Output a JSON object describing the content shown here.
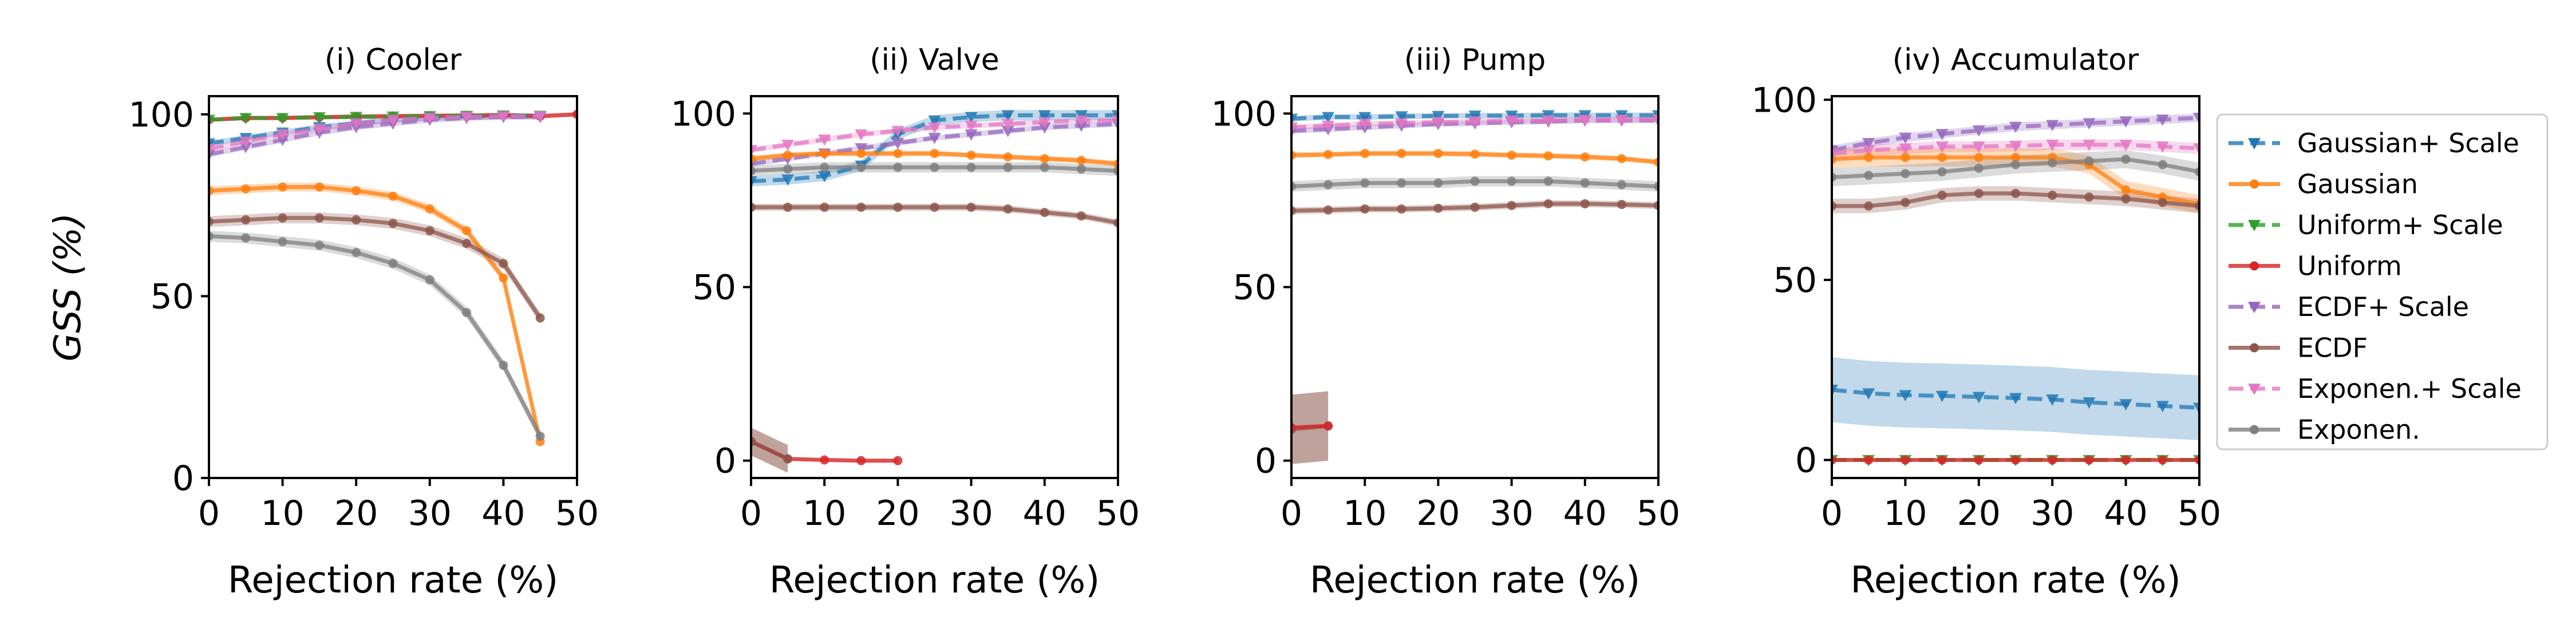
{
  "colors": {
    "Gaussian+ Scale": "#1f77b4",
    "Gaussian": "#ff7f0e",
    "Uniform+ Scale": "#2ca02c",
    "Uniform": "#d62728",
    "ECDF+ Scale": "#9467bd",
    "ECDF": "#8c564b",
    "Exponen.+ Scale": "#e377c2",
    "Exponen.": "#7f7f7f"
  },
  "legend": {
    "placement": "right",
    "entries": [
      {
        "name": "Gaussian+ Scale",
        "style": "dashed",
        "marker": "triangle-down"
      },
      {
        "name": "Gaussian",
        "style": "solid",
        "marker": "circle"
      },
      {
        "name": "Uniform+ Scale",
        "style": "dashed",
        "marker": "triangle-down"
      },
      {
        "name": "Uniform",
        "style": "solid",
        "marker": "circle"
      },
      {
        "name": "ECDF+ Scale",
        "style": "dashed",
        "marker": "triangle-down"
      },
      {
        "name": "ECDF",
        "style": "solid",
        "marker": "circle"
      },
      {
        "name": "Exponen.+ Scale",
        "style": "dashed",
        "marker": "triangle-down"
      },
      {
        "name": "Exponen.",
        "style": "solid",
        "marker": "circle"
      }
    ]
  },
  "chart_data": [
    {
      "type": "line",
      "title": "(i) Cooler",
      "xlabel": "Rejection rate (%)",
      "ylabel": "GSS (%)",
      "xlim": [
        0,
        50
      ],
      "ylim": [
        0,
        105
      ],
      "xticks": [
        0,
        10,
        20,
        30,
        40,
        50
      ],
      "yticks": [
        0,
        50,
        100
      ],
      "series": [
        {
          "name": "Uniform",
          "x": [
            0,
            5,
            10,
            15,
            20,
            25,
            30,
            35,
            40,
            45,
            50
          ],
          "values": [
            98.5,
            99,
            99,
            99.2,
            99.4,
            99.5,
            99.6,
            99.7,
            99.8,
            99.5,
            100
          ],
          "band": 0.6
        },
        {
          "name": "Uniform+ Scale",
          "x": [
            0,
            5,
            10,
            15,
            20,
            25,
            30,
            35,
            40,
            45
          ],
          "values": [
            98.5,
            99,
            99,
            99.2,
            99.3,
            99.4,
            99.5,
            99.6,
            99.7,
            99.6
          ],
          "band": 0.5
        },
        {
          "name": "Gaussian+ Scale",
          "x": [
            0,
            5,
            10,
            15,
            20,
            25,
            30,
            35,
            40,
            45
          ],
          "values": [
            92,
            93.5,
            95,
            96.5,
            97.5,
            98.5,
            99,
            99.3,
            99.5,
            99.5
          ],
          "band": 0.8
        },
        {
          "name": "ECDF+ Scale",
          "x": [
            0,
            5,
            10,
            15,
            20,
            25,
            30,
            35,
            40,
            45
          ],
          "values": [
            89,
            91,
            93,
            95,
            96.5,
            97.5,
            98.5,
            99,
            99.3,
            99.3
          ],
          "band": 0.8
        },
        {
          "name": "Exponen.+ Scale",
          "x": [
            0,
            5,
            10,
            15,
            20,
            25,
            30,
            35,
            40,
            45
          ],
          "values": [
            90.5,
            92.5,
            94.5,
            96,
            97.5,
            98.5,
            99,
            99.3,
            99.5,
            99.5
          ],
          "band": 0.8
        },
        {
          "name": "Gaussian",
          "x": [
            0,
            5,
            10,
            15,
            20,
            25,
            30,
            35,
            40,
            45
          ],
          "values": [
            79,
            79.5,
            80,
            80,
            79,
            77.5,
            74,
            68,
            55,
            10
          ],
          "band": 1.2
        },
        {
          "name": "ECDF",
          "x": [
            0,
            5,
            10,
            15,
            20,
            25,
            30,
            35,
            40,
            45
          ],
          "values": [
            70.5,
            71,
            71.5,
            71.5,
            71,
            70,
            68,
            64.5,
            59,
            44
          ],
          "band": 1.5
        },
        {
          "name": "Exponen.",
          "x": [
            0,
            5,
            10,
            15,
            20,
            25,
            30,
            35,
            40,
            45
          ],
          "values": [
            66.5,
            66,
            65,
            64,
            62,
            59,
            54.5,
            45.5,
            31,
            11.5
          ],
          "band": 1.5
        }
      ]
    },
    {
      "type": "line",
      "title": "(ii) Valve",
      "xlabel": "Rejection rate (%)",
      "ylabel": "",
      "xlim": [
        0,
        50
      ],
      "ylim": [
        -5,
        105
      ],
      "xticks": [
        0,
        10,
        20,
        30,
        40,
        50
      ],
      "yticks": [
        0,
        50,
        100
      ],
      "series": [
        {
          "name": "Gaussian+ Scale",
          "x": [
            0,
            5,
            10,
            15,
            20,
            25,
            30,
            35,
            40,
            45,
            50
          ],
          "values": [
            80.5,
            81,
            82,
            85,
            94,
            98,
            99,
            99.5,
            99.5,
            99.5,
            99.5
          ],
          "band": 1.5
        },
        {
          "name": "ECDF+ Scale",
          "x": [
            0,
            5,
            10,
            15,
            20,
            25,
            30,
            35,
            40,
            45,
            50
          ],
          "values": [
            85.5,
            87,
            88.5,
            90,
            91.5,
            93,
            94,
            95,
            96,
            96.5,
            97
          ],
          "band": 0.8
        },
        {
          "name": "Exponen.+ Scale",
          "x": [
            0,
            5,
            10,
            15,
            20,
            25,
            30,
            35,
            40,
            45,
            50
          ],
          "values": [
            89.5,
            91,
            92.5,
            94,
            95,
            96,
            96.5,
            97,
            97.5,
            98,
            98
          ],
          "band": 0.8
        },
        {
          "name": "Gaussian",
          "x": [
            0,
            5,
            10,
            15,
            20,
            25,
            30,
            35,
            40,
            45,
            50
          ],
          "values": [
            87,
            88,
            88.5,
            88.5,
            88.5,
            88.5,
            88,
            87.5,
            87,
            86.5,
            85.5
          ],
          "band": 0.8
        },
        {
          "name": "Exponen.",
          "x": [
            0,
            5,
            10,
            15,
            20,
            25,
            30,
            35,
            40,
            45,
            50
          ],
          "values": [
            83.5,
            84,
            84.5,
            84.5,
            84.5,
            84.5,
            84.5,
            84.5,
            84.5,
            84,
            83.5
          ],
          "band": 1.5
        },
        {
          "name": "ECDF",
          "x": [
            0,
            5,
            10,
            15,
            20,
            25,
            30,
            35,
            40,
            45,
            50
          ],
          "values": [
            73,
            73,
            73,
            73,
            73,
            73,
            73,
            72.5,
            71.5,
            70.5,
            68.5
          ],
          "band": 1.0
        },
        {
          "name": "Uniform",
          "x": [
            0,
            5,
            10,
            15,
            20
          ],
          "values": [
            5.5,
            0.5,
            0.2,
            0,
            0
          ],
          "band": 0.5
        },
        {
          "name": "ECDF",
          "x": [
            0,
            5
          ],
          "values": [
            5.5,
            0.5
          ],
          "band": 4,
          "segment": "low"
        }
      ]
    },
    {
      "type": "line",
      "title": "(iii) Pump",
      "xlabel": "Rejection rate (%)",
      "ylabel": "",
      "xlim": [
        0,
        50
      ],
      "ylim": [
        -5,
        105
      ],
      "xticks": [
        0,
        10,
        20,
        30,
        40,
        50
      ],
      "yticks": [
        0,
        50,
        100
      ],
      "series": [
        {
          "name": "Gaussian+ Scale",
          "x": [
            0,
            5,
            10,
            15,
            20,
            25,
            30,
            35,
            40,
            45,
            50
          ],
          "values": [
            98.5,
            99,
            99,
            99.2,
            99.3,
            99.4,
            99.4,
            99.5,
            99.5,
            99.5,
            99.5
          ],
          "band": 0.8
        },
        {
          "name": "ECDF+ Scale",
          "x": [
            0,
            5,
            10,
            15,
            20,
            25,
            30,
            35,
            40,
            45,
            50
          ],
          "values": [
            95,
            95.5,
            96,
            96.5,
            97,
            97.2,
            97.5,
            97.7,
            98,
            98,
            98
          ],
          "band": 0.8
        },
        {
          "name": "Exponen.+ Scale",
          "x": [
            0,
            5,
            10,
            15,
            20,
            25,
            30,
            35,
            40,
            45,
            50
          ],
          "values": [
            96,
            96.5,
            97,
            97.2,
            97.5,
            97.7,
            98,
            98,
            98.2,
            98.2,
            98.3
          ],
          "band": 0.8
        },
        {
          "name": "Gaussian",
          "x": [
            0,
            5,
            10,
            15,
            20,
            25,
            30,
            35,
            40,
            45,
            50
          ],
          "values": [
            88,
            88.2,
            88.5,
            88.5,
            88.5,
            88.3,
            88,
            87.8,
            87.5,
            87,
            86
          ],
          "band": 0.8
        },
        {
          "name": "Exponen.",
          "x": [
            0,
            5,
            10,
            15,
            20,
            25,
            30,
            35,
            40,
            45,
            50
          ],
          "values": [
            79,
            79.5,
            80,
            80,
            80,
            80.5,
            80.5,
            80.5,
            80,
            79.5,
            79
          ],
          "band": 1.5
        },
        {
          "name": "ECDF",
          "x": [
            0,
            5,
            10,
            15,
            20,
            25,
            30,
            35,
            40,
            45,
            50
          ],
          "values": [
            72,
            72.2,
            72.5,
            72.5,
            72.7,
            73,
            73.5,
            74,
            74,
            73.8,
            73.5
          ],
          "band": 1.0
        },
        {
          "name": "ECDF",
          "x": [
            0,
            5
          ],
          "values": [
            9,
            10
          ],
          "band": 10,
          "segment": "low"
        },
        {
          "name": "Uniform",
          "x": [
            0,
            5
          ],
          "values": [
            9.5,
            10
          ],
          "band": 0.5
        }
      ]
    },
    {
      "type": "line",
      "title": "(iv) Accumulator",
      "xlabel": "Rejection rate (%)",
      "ylabel": "",
      "xlim": [
        0,
        50
      ],
      "ylim": [
        -5,
        101
      ],
      "xticks": [
        0,
        10,
        20,
        30,
        40,
        50
      ],
      "yticks": [
        0,
        50,
        100
      ],
      "series": [
        {
          "name": "ECDF+ Scale",
          "x": [
            0,
            5,
            10,
            15,
            20,
            25,
            30,
            35,
            40,
            45,
            50
          ],
          "values": [
            86,
            88,
            89.5,
            90.5,
            91.5,
            92.5,
            93,
            93.5,
            94,
            94.5,
            95
          ],
          "band": 1.2
        },
        {
          "name": "Exponen.+ Scale",
          "x": [
            0,
            5,
            10,
            15,
            20,
            25,
            30,
            35,
            40,
            45,
            50
          ],
          "values": [
            85,
            86,
            86.5,
            87,
            87,
            87.2,
            87.5,
            87.5,
            87.5,
            87,
            86.5
          ],
          "band": 1.5
        },
        {
          "name": "Gaussian",
          "x": [
            0,
            5,
            10,
            15,
            20,
            25,
            30,
            35,
            40,
            45,
            50
          ],
          "values": [
            83.5,
            84,
            84,
            84,
            84,
            84,
            84,
            82,
            75,
            73,
            71
          ],
          "band": 2.5
        },
        {
          "name": "Exponen.",
          "x": [
            0,
            5,
            10,
            15,
            20,
            25,
            30,
            35,
            40,
            45,
            50
          ],
          "values": [
            78.5,
            79,
            79.5,
            80,
            81,
            82,
            82.5,
            83,
            83.5,
            82,
            80
          ],
          "band": 2.5
        },
        {
          "name": "ECDF",
          "x": [
            0,
            5,
            10,
            15,
            20,
            25,
            30,
            35,
            40,
            45,
            50
          ],
          "values": [
            70.5,
            70.5,
            71.5,
            73.5,
            74,
            74,
            73.5,
            73,
            72.5,
            71.5,
            70.5
          ],
          "band": 2.0
        },
        {
          "name": "Gaussian+ Scale",
          "x": [
            0,
            5,
            10,
            15,
            20,
            25,
            30,
            35,
            40,
            45,
            50
          ],
          "values": [
            19.5,
            18.5,
            18,
            17.8,
            17.5,
            17.2,
            16.8,
            16,
            15.5,
            15,
            14.5
          ],
          "band": 9
        },
        {
          "name": "Uniform+ Scale",
          "x": [
            0,
            5,
            10,
            15,
            20,
            25,
            30,
            35,
            40,
            45,
            50
          ],
          "values": [
            0,
            0,
            0,
            0,
            0,
            0,
            0,
            0,
            0,
            0,
            0
          ],
          "band": 0.3
        },
        {
          "name": "Uniform",
          "x": [
            0,
            5,
            10,
            15,
            20,
            25,
            30,
            35,
            40,
            45,
            50
          ],
          "values": [
            0,
            0,
            0,
            0,
            0,
            0,
            0,
            0,
            0,
            0,
            0
          ],
          "band": 0.3
        }
      ]
    }
  ]
}
